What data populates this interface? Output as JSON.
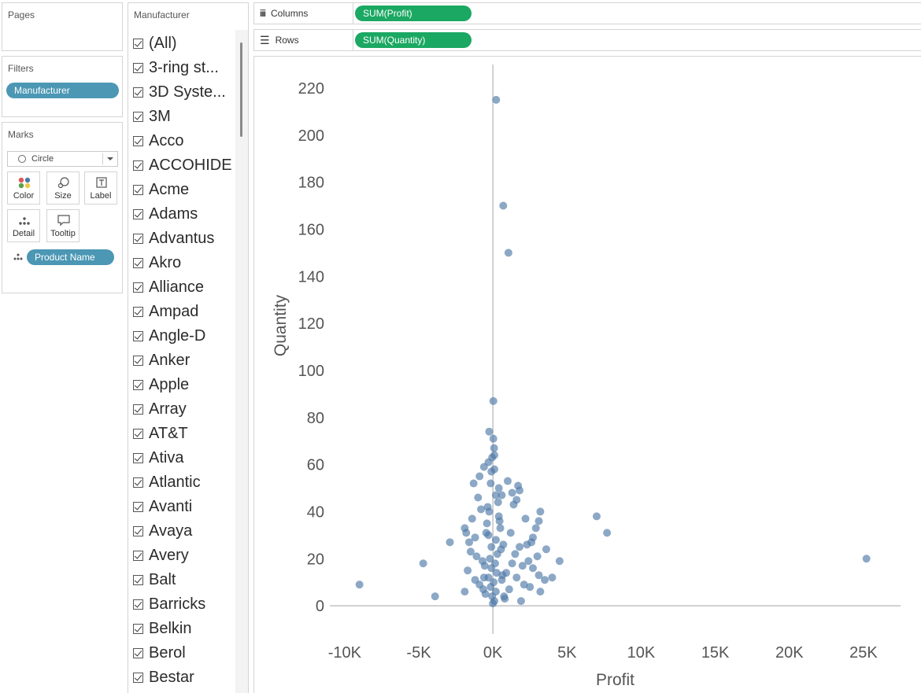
{
  "pages": {
    "title": "Pages"
  },
  "filters": {
    "title": "Filters",
    "pill": "Manufacturer"
  },
  "marks": {
    "title": "Marks",
    "type": "Circle",
    "buttons": [
      "Color",
      "Size",
      "Label",
      "Detail",
      "Tooltip"
    ],
    "detail_pill": "Product Name"
  },
  "manufacturer_filter": {
    "title": "Manufacturer",
    "items": [
      "(All)",
      "3-ring st...",
      "3D Syste...",
      "3M",
      "Acco",
      "ACCOHIDE",
      "Acme",
      "Adams",
      "Advantus",
      "Akro",
      "Alliance",
      "Ampad",
      "Angle-D",
      "Anker",
      "Apple",
      "Array",
      "AT&T",
      "Ativa",
      "Atlantic",
      "Avanti",
      "Avaya",
      "Avery",
      "Balt",
      "Barricks",
      "Belkin",
      "Berol",
      "Bestar"
    ]
  },
  "shelves": {
    "columns": {
      "label": "Columns",
      "pill": "SUM(Profit)"
    },
    "rows": {
      "label": "Rows",
      "pill": "SUM(Quantity)"
    }
  },
  "colors": {
    "mark": "#4e79a7",
    "pill_green": "#1ba862",
    "pill_blue": "#4b97b4"
  },
  "chart_data": {
    "type": "scatter",
    "xlabel": "Profit",
    "ylabel": "Quantity",
    "x_ticks": [
      {
        "value": -10000,
        "label": "-10K"
      },
      {
        "value": -5000,
        "label": "-5K"
      },
      {
        "value": 0,
        "label": "0K"
      },
      {
        "value": 5000,
        "label": "5K"
      },
      {
        "value": 10000,
        "label": "10K"
      },
      {
        "value": 15000,
        "label": "15K"
      },
      {
        "value": 20000,
        "label": "20K"
      },
      {
        "value": 25000,
        "label": "25K"
      }
    ],
    "y_ticks": [
      0,
      20,
      40,
      60,
      80,
      100,
      120,
      140,
      160,
      180,
      200,
      220
    ],
    "xlim": [
      -11000,
      27500
    ],
    "ylim": [
      -12,
      230
    ],
    "grid": false,
    "legend": "none",
    "points": [
      [
        220,
        215
      ],
      [
        700,
        170
      ],
      [
        1050,
        150
      ],
      [
        25200,
        20
      ],
      [
        7000,
        38
      ],
      [
        7700,
        31
      ],
      [
        -9000,
        9
      ],
      [
        -4700,
        18
      ],
      [
        -3900,
        4
      ],
      [
        -2900,
        27
      ],
      [
        -1900,
        6
      ],
      [
        -1900,
        33
      ],
      [
        4500,
        19
      ],
      [
        4000,
        12
      ],
      [
        3600,
        24
      ],
      [
        3500,
        11
      ],
      [
        3200,
        40
      ],
      [
        3100,
        13
      ],
      [
        3000,
        21
      ],
      [
        3200,
        6
      ],
      [
        3100,
        36
      ],
      [
        2700,
        16
      ],
      [
        2600,
        27
      ],
      [
        2500,
        8
      ],
      [
        2200,
        37
      ],
      [
        2000,
        17
      ],
      [
        1700,
        51
      ],
      [
        1800,
        49
      ],
      [
        1600,
        45
      ],
      [
        1400,
        43
      ],
      [
        1300,
        48
      ],
      [
        1000,
        53
      ],
      [
        -250,
        74
      ],
      [
        30,
        71
      ],
      [
        80,
        67
      ],
      [
        100,
        64
      ],
      [
        30,
        87
      ],
      [
        -100,
        57
      ],
      [
        -300,
        61
      ],
      [
        -600,
        59
      ],
      [
        -900,
        55
      ],
      [
        -1300,
        52
      ],
      [
        400,
        50
      ],
      [
        600,
        47
      ],
      [
        -50,
        63
      ],
      [
        -1000,
        46
      ],
      [
        -1400,
        37
      ],
      [
        -1500,
        23
      ],
      [
        -1200,
        29
      ],
      [
        -800,
        41
      ],
      [
        1900,
        2
      ],
      [
        2300,
        26
      ],
      [
        -1700,
        15
      ],
      [
        2700,
        29
      ],
      [
        -600,
        12
      ],
      [
        500,
        33
      ],
      [
        -300,
        30
      ],
      [
        200,
        28
      ],
      [
        -100,
        25
      ],
      [
        300,
        22
      ],
      [
        -200,
        20
      ],
      [
        150,
        18
      ],
      [
        -100,
        16
      ],
      [
        250,
        14
      ],
      [
        -300,
        12
      ],
      [
        50,
        10
      ],
      [
        -150,
        8
      ],
      [
        200,
        6
      ],
      [
        -50,
        4
      ],
      [
        100,
        2
      ],
      [
        0,
        1
      ],
      [
        400,
        38
      ],
      [
        -400,
        35
      ],
      [
        700,
        26
      ],
      [
        -700,
        19
      ],
      [
        900,
        14
      ],
      [
        -900,
        9
      ],
      [
        1200,
        31
      ],
      [
        -1100,
        21
      ],
      [
        600,
        11
      ],
      [
        -500,
        5
      ],
      [
        800,
        3
      ],
      [
        1100,
        7
      ],
      [
        -1200,
        11
      ],
      [
        1500,
        22
      ],
      [
        -1600,
        27
      ],
      [
        350,
        44
      ],
      [
        -350,
        42
      ],
      [
        100,
        58
      ],
      [
        -150,
        52
      ],
      [
        200,
        47
      ],
      [
        -250,
        40
      ],
      [
        450,
        36
      ],
      [
        -450,
        31
      ],
      [
        550,
        24
      ],
      [
        -550,
        17
      ],
      [
        650,
        13
      ],
      [
        -650,
        7
      ],
      [
        750,
        4
      ],
      [
        1300,
        18
      ],
      [
        1600,
        12
      ],
      [
        1800,
        25
      ],
      [
        2100,
        9
      ],
      [
        -1800,
        31
      ],
      [
        2400,
        19
      ],
      [
        2900,
        33
      ]
    ]
  }
}
